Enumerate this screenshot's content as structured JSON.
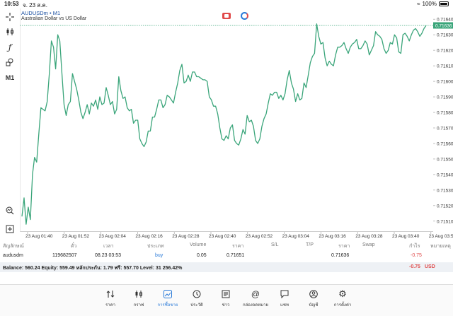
{
  "statusbar": {
    "time": "10:53",
    "date": "จ. 23 ส.ค.",
    "battery": "100%"
  },
  "chart": {
    "symbol": "AUDUSDm • M1",
    "description": "Australian Dollar vs US Dollar",
    "current_price_label": "0.71636"
  },
  "chart_data": {
    "type": "line",
    "x_labels": [
      "23 Aug 01:40",
      "23 Aug 01:52",
      "23 Aug 02:04",
      "23 Aug 02:16",
      "23 Aug 02:28",
      "23 Aug 02:40",
      "23 Aug 02:52",
      "23 Aug 03:04",
      "23 Aug 03:16",
      "23 Aug 03:28",
      "23 Aug 03:40",
      "23 Aug 03:5"
    ],
    "y_ticks": [
      "0.71640",
      "0.71630",
      "0.71620",
      "0.71610",
      "0.71600",
      "0.71590",
      "0.71580",
      "0.71570",
      "0.71560",
      "0.71550",
      "0.71540",
      "0.71530",
      "0.71520",
      "0.71510"
    ],
    "ylim": [
      0.71504,
      0.71646
    ],
    "current_price": 0.71636,
    "color": "#3aa57a",
    "values": [
      0.71513,
      0.71525,
      0.71508,
      0.71519,
      0.71511,
      0.7154,
      0.71551,
      0.71548,
      0.71566,
      0.71583,
      0.71582,
      0.71581,
      0.71587,
      0.71605,
      0.71626,
      0.71622,
      0.71608,
      0.7163,
      0.71626,
      0.71605,
      0.71585,
      0.71578,
      0.71585,
      0.71587,
      0.71605,
      0.716,
      0.71595,
      0.71588,
      0.7158,
      0.71576,
      0.7158,
      0.71585,
      0.71579,
      0.71586,
      0.71584,
      0.71588,
      0.71582,
      0.7159,
      0.71585,
      0.71586,
      0.71596,
      0.71591,
      0.71585,
      0.71587,
      0.71579,
      0.71582,
      0.71603,
      0.71594,
      0.71589,
      0.7159,
      0.71583,
      0.71581,
      0.71582,
      0.71573,
      0.71575,
      0.71575,
      0.71563,
      0.7156,
      0.71558,
      0.71561,
      0.71568,
      0.71568,
      0.71577,
      0.71577,
      0.71582,
      0.71588,
      0.71588,
      0.71583,
      0.71585,
      0.71591,
      0.7159,
      0.71588,
      0.71586,
      0.71593,
      0.71599,
      0.71607,
      0.71611,
      0.71599,
      0.716,
      0.71604,
      0.716,
      0.71606,
      0.71606,
      0.71603,
      0.71603,
      0.71602,
      0.71601,
      0.71601,
      0.716,
      0.7159,
      0.71588,
      0.71584,
      0.71584,
      0.71579,
      0.7157,
      0.71563,
      0.71562,
      0.71565,
      0.71563,
      0.7157,
      0.71572,
      0.71562,
      0.7156,
      0.71559,
      0.71563,
      0.71569,
      0.71566,
      0.71578,
      0.71574,
      0.71575,
      0.71571,
      0.71562,
      0.7156,
      0.71563,
      0.71571,
      0.71576,
      0.71579,
      0.71586,
      0.71592,
      0.71591,
      0.71593,
      0.71593,
      0.71589,
      0.71591,
      0.71588,
      0.71592,
      0.71601,
      0.71607,
      0.71599,
      0.71595,
      0.71587,
      0.71592,
      0.71588,
      0.71589,
      0.71599,
      0.71596,
      0.71604,
      0.71612,
      0.71616,
      0.71618,
      0.71637,
      0.71629,
      0.71624,
      0.71625,
      0.71615,
      0.7161,
      0.71613,
      0.71611,
      0.7161,
      0.71617,
      0.71622,
      0.71622,
      0.71623,
      0.71625,
      0.71621,
      0.71618,
      0.71622,
      0.71624,
      0.71625,
      0.71627,
      0.71621,
      0.71621,
      0.71623,
      0.71626,
      0.71624,
      0.71617,
      0.7162,
      0.71623,
      0.71632,
      0.7163,
      0.71629,
      0.71627,
      0.71621,
      0.71618,
      0.7162,
      0.71625,
      0.71624,
      0.7163,
      0.71628,
      0.71619,
      0.71618,
      0.7163,
      0.71631,
      0.71629,
      0.71626,
      0.7163,
      0.71633,
      0.71634,
      0.71632,
      0.71629,
      0.71631,
      0.71634,
      0.71636
    ]
  },
  "tools": {
    "crosshair": "crosshair-icon",
    "indicators": "candles-icon",
    "functions": "f-icon",
    "objects": "shapes-icon",
    "timeframe": "M1",
    "zoom": "zoom-icon",
    "add": "plus-square-icon"
  },
  "table": {
    "headers": [
      "สัญลักษณ์",
      "ตั๋ว",
      "เวลา",
      "ประเภท",
      "Volume",
      "ราคา",
      "S/L",
      "T/P",
      "ราคา",
      "Swap",
      "กำไร",
      "หมายเหตุ"
    ],
    "row": {
      "symbol": "audusdm",
      "ticket": "119682507",
      "time": "08.23 03:53",
      "type": "buy",
      "volume": "0.05",
      "open_price": "0.71651",
      "sl": "",
      "tp": "",
      "price": "0.71636",
      "swap": "",
      "profit": "-0.75",
      "comment": ""
    },
    "balance_line": "Balance: 560.24 Equity: 559.49 หลักประกัน: 1.79 ฟรี: 557.70 Level: 31 256.42%",
    "balance_profit": "-0.75",
    "currency": "USD"
  },
  "tabbar": [
    {
      "label": "ราคา",
      "icon": "quotes-icon"
    },
    {
      "label": "กราฟ",
      "icon": "chart-candles-icon"
    },
    {
      "label": "การซื้อขาย",
      "icon": "trade-icon",
      "active": true
    },
    {
      "label": "ประวัติ",
      "icon": "history-icon"
    },
    {
      "label": "ข่าว",
      "icon": "news-icon"
    },
    {
      "label": "กล่องจดหมาย",
      "icon": "mail-icon"
    },
    {
      "label": "แชท",
      "icon": "chat-icon"
    },
    {
      "label": "บัญชี",
      "icon": "account-icon"
    },
    {
      "label": "การตั้งค่า",
      "icon": "settings-icon"
    }
  ]
}
